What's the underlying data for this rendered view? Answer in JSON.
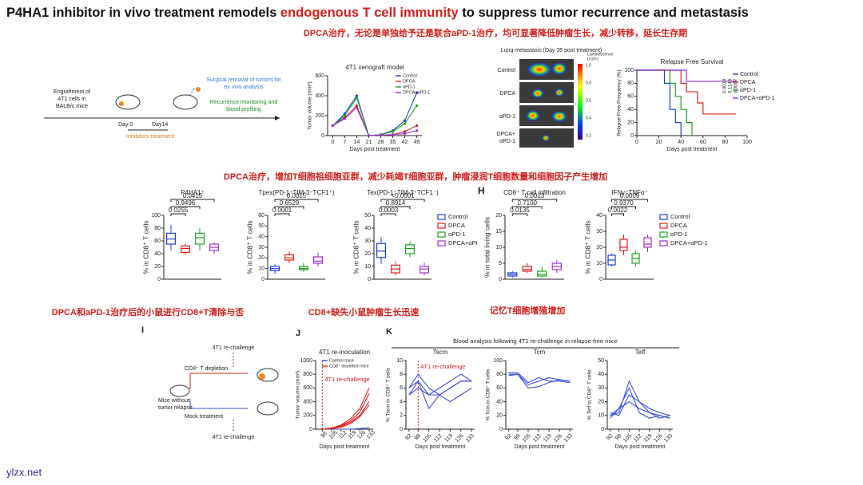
{
  "header": {
    "title_start": "P4HA1 inhibitor in vivo treatment remodels ",
    "title_highlight": "endogenous T cell immunity",
    "title_end": " to suppress tumor recurrence and metastasis",
    "subtitle": "DPCA治疗，无论是单独给予还是联合aPD-1治疗，均可显著降低肿瘤生长，减少转移，延长生存期"
  },
  "schematic_a": {
    "engraftment": [
      "Engraftment of",
      "4T1 cells in",
      "BALB/c mice"
    ],
    "surgery": [
      "Surgical removal of tumors for",
      "ex vivo analysis"
    ],
    "monitoring": [
      "Recurrence monitoring and",
      "blood profiling"
    ],
    "day0": "Day 0",
    "day14": "Day14",
    "treatment": "Inhibitors treatment"
  },
  "lung": {
    "title": "Lung metastasis (Day 35 post treatment)",
    "rows": [
      "Control",
      "DPCA",
      "αPD-1",
      "DPCA+",
      "αPD-1"
    ],
    "colorbar_label": [
      "Luminescence",
      "(×10⁶)"
    ],
    "colorbar_ticks": [
      "1.0",
      "0.8",
      "0.6",
      "0.4",
      "0.2"
    ]
  },
  "section_b": "DPCA治疗，增加T细胞祖细胞亚群，减少耗竭T细胞亚群，肿瘤浸润T细胞数量和细胞因子产生增加",
  "panel_h": "H",
  "captions": [
    "DPCA和aPD-1治疗后的小鼠进行CD8+T清除与否",
    "CD8+缺失小鼠肿瘤生长迅速",
    "记忆T细胞增殖增加"
  ],
  "schematic_i": {
    "label": "I",
    "rechallenge_top": "4T1 re-challenge",
    "depletion": "CD8⁺ T depletion",
    "mice": [
      "Mice without",
      "tumor relapse"
    ],
    "mock": "Mock treatment",
    "rechallenge_bottom": "4T1 re-challenge"
  },
  "panel_j": "J",
  "panel_k": {
    "label": "K",
    "heading": "Blood analysis following 4T1 re-challenge in relapse-free mice"
  },
  "footer": "ylzx.net",
  "chart_data": {
    "xenograft": {
      "type": "line",
      "title": "4T1 xenograft model",
      "y_label": "Tumor volume (mm³)",
      "x_label": "Days post treatment",
      "x": [
        0,
        7,
        14,
        21,
        28,
        35,
        42,
        49
      ],
      "xlim": [
        -3,
        52
      ],
      "xticks": [
        0,
        7,
        14,
        21,
        28,
        35,
        42,
        49
      ],
      "ylim": [
        0,
        600
      ],
      "yticks": [
        0,
        200,
        400,
        600
      ],
      "markers": true,
      "series": [
        {
          "name": "Control",
          "color": "#1f3fd6",
          "values": [
            100,
            220,
            400,
            0,
            10,
            50,
            150,
            430
          ]
        },
        {
          "name": "DPCA",
          "color": "#e0201b",
          "values": [
            100,
            180,
            300,
            0,
            5,
            10,
            40,
            100
          ]
        },
        {
          "name": "αPD-1",
          "color": "#1aa51a",
          "values": [
            100,
            200,
            380,
            0,
            10,
            40,
            120,
            300
          ]
        },
        {
          "name": "DPCA+αPD-1",
          "color": "#9b30d0",
          "values": [
            100,
            170,
            280,
            0,
            5,
            10,
            20,
            50
          ]
        }
      ]
    },
    "survival": {
      "type": "step",
      "title": "Relapse Free Survival",
      "y_label": "Relapse Free Frequency (%)",
      "x_label": "Days post treatment",
      "xlim": [
        0,
        100
      ],
      "xticks": [
        0,
        20,
        40,
        60,
        80,
        100
      ],
      "ylim": [
        0,
        100
      ],
      "yticks": [
        0,
        20,
        40,
        60,
        80,
        100
      ],
      "p_values": [
        "0.0019",
        "0.1148",
        "0.0007"
      ],
      "series": [
        {
          "name": "Control",
          "color": "#1f3fd6",
          "x": [
            0,
            25,
            30,
            35,
            40
          ],
          "values": [
            100,
            80,
            40,
            20,
            0
          ]
        },
        {
          "name": "DPCA",
          "color": "#e0201b",
          "x": [
            0,
            40,
            45,
            55,
            60,
            90
          ],
          "values": [
            100,
            80,
            67,
            50,
            33,
            33
          ]
        },
        {
          "name": "αPD-1",
          "color": "#1aa51a",
          "x": [
            0,
            30,
            35,
            40,
            45,
            50
          ],
          "values": [
            100,
            80,
            60,
            40,
            20,
            0
          ]
        },
        {
          "name": "DPCA+αPD-1",
          "color": "#9b30d0",
          "x": [
            0,
            45,
            90
          ],
          "values": [
            100,
            83,
            83
          ]
        }
      ]
    },
    "p4ha1": {
      "type": "box",
      "title": "P4HA1⁺",
      "y_label": "% in CD8⁺ T cells",
      "ylim": [
        0,
        100
      ],
      "yticks": [
        0,
        20,
        40,
        60,
        80,
        100
      ],
      "p_values": [
        "0.0415",
        "0.9496",
        "0.0255"
      ],
      "groups": [
        {
          "color": "#1f3fd6",
          "stats": [
            45,
            55,
            63,
            72,
            85
          ]
        },
        {
          "color": "#e0201b",
          "stats": [
            38,
            42,
            48,
            52,
            55
          ]
        },
        {
          "color": "#1aa51a",
          "stats": [
            45,
            55,
            65,
            72,
            80
          ]
        },
        {
          "color": "#9b30d0",
          "stats": [
            40,
            45,
            50,
            55,
            58
          ]
        }
      ]
    },
    "tpex": {
      "type": "box",
      "title": "Tpex(PD-1⁺TIM-3⁻TCF1⁺)",
      "y_label": "% in CD8⁺ T cells",
      "ylim": [
        0,
        60
      ],
      "yticks": [
        0,
        10,
        20,
        30,
        40,
        50,
        60
      ],
      "p_values": [
        "0.0015",
        "0.6529",
        "0.0001"
      ],
      "groups": [
        {
          "color": "#1f3fd6",
          "stats": [
            5,
            8,
            10,
            12,
            14
          ]
        },
        {
          "color": "#e0201b",
          "stats": [
            15,
            18,
            20,
            23,
            26
          ]
        },
        {
          "color": "#1aa51a",
          "stats": [
            7,
            9,
            10,
            12,
            15
          ]
        },
        {
          "color": "#9b30d0",
          "stats": [
            12,
            15,
            17,
            21,
            25
          ]
        }
      ]
    },
    "tex": {
      "type": "box",
      "title": "Tex(PD-1⁺TIM-3⁺TCF1⁻)",
      "y_label": "% in CD8⁺ T cells",
      "ylim": [
        0,
        50
      ],
      "yticks": [
        0,
        10,
        20,
        30,
        40,
        50
      ],
      "p_values": [
        "<0.0001",
        "0.8914",
        "0.0003"
      ],
      "legend": [
        "Control",
        "DPCA",
        "αPD-1",
        "DPCA+αPt"
      ],
      "groups": [
        {
          "color": "#1f3fd6",
          "stats": [
            12,
            17,
            22,
            28,
            33
          ]
        },
        {
          "color": "#e0201b",
          "stats": [
            3,
            5,
            8,
            11,
            14
          ]
        },
        {
          "color": "#1aa51a",
          "stats": [
            17,
            20,
            24,
            27,
            30
          ]
        },
        {
          "color": "#9b30d0",
          "stats": [
            3,
            5,
            8,
            10,
            13
          ]
        }
      ]
    },
    "cd8": {
      "type": "box",
      "title": "CD8⁺ T cell infiltration",
      "y_label": "% in total living cells",
      "ylim": [
        0,
        20
      ],
      "yticks": [
        0,
        5,
        10,
        15,
        20
      ],
      "p_values": [
        "0.0013",
        "0.7100",
        "0.0135"
      ],
      "groups": [
        {
          "color": "#1f3fd6",
          "stats": [
            0.5,
            1,
            1.5,
            2,
            2.5
          ]
        },
        {
          "color": "#e0201b",
          "stats": [
            2,
            2.5,
            3,
            4,
            5
          ]
        },
        {
          "color": "#1aa51a",
          "stats": [
            0.5,
            1,
            1.5,
            2.5,
            4
          ]
        },
        {
          "color": "#9b30d0",
          "stats": [
            2,
            3,
            4,
            5,
            6
          ]
        }
      ]
    },
    "ifng": {
      "type": "box",
      "title": "IFNγ⁺TNFα⁺",
      "y_label": "% in CD8⁺ T cells",
      "ylim": [
        0,
        40
      ],
      "yticks": [
        0,
        10,
        20,
        30,
        40
      ],
      "p_values": [
        "0.0009",
        "0.9370",
        "0.0022"
      ],
      "legend": [
        "Control",
        "DPCA",
        "αPD-1",
        "DPCA+αPD-1"
      ],
      "groups": [
        {
          "color": "#1f3fd6",
          "stats": [
            8,
            9,
            12,
            15,
            16
          ]
        },
        {
          "color": "#e0201b",
          "stats": [
            15,
            18,
            20,
            25,
            28
          ]
        },
        {
          "color": "#1aa51a",
          "stats": [
            8,
            10,
            13,
            16,
            18
          ]
        },
        {
          "color": "#9b30d0",
          "stats": [
            17,
            20,
            22,
            26,
            28
          ]
        }
      ]
    },
    "reinoc": {
      "type": "line",
      "title": "4T1 re-inoculation",
      "y_label": "Tumor volume (mm³)",
      "x_label": "Days post treatment",
      "annotation": "4T1 re-challenge",
      "x": [
        98,
        105,
        112,
        119,
        126,
        133
      ],
      "xlim": [
        93,
        136
      ],
      "xticks": [
        98,
        105,
        112,
        119,
        126,
        133
      ],
      "ylim": [
        0,
        1000
      ],
      "yticks": [
        0,
        200,
        400,
        600,
        800,
        1000
      ],
      "series": [
        {
          "name": "Control mice",
          "color": "#3b4fe0",
          "values": [
            0,
            0,
            0,
            0,
            10,
            20
          ]
        },
        {
          "name": "CD8⁺ depleted mice",
          "color": "#e0201b",
          "values": [
            0,
            20,
            50,
            120,
            250,
            520
          ]
        },
        {
          "color": "#e0201b",
          "values": [
            0,
            10,
            40,
            100,
            200,
            400
          ]
        },
        {
          "color": "#e0201b",
          "values": [
            0,
            15,
            60,
            150,
            300,
            600
          ]
        },
        {
          "color": "#e0201b",
          "values": [
            0,
            5,
            30,
            80,
            180,
            350
          ]
        }
      ]
    },
    "tscm": {
      "type": "line",
      "title": "Tscm",
      "y_label": "% Tscm in CD8⁺ T cells",
      "x_label": "Days post treatment",
      "annotation": "4T1 re-challenge",
      "x": [
        92,
        98,
        105,
        112,
        119,
        126,
        133
      ],
      "xlim": [
        90,
        135
      ],
      "xticks": [
        92,
        98,
        105,
        112,
        119,
        126,
        133
      ],
      "ylim": [
        0,
        10
      ],
      "yticks": [
        0,
        2,
        4,
        6,
        8,
        10
      ],
      "series": [
        {
          "color": "#3b4fe0",
          "values": [
            5,
            7,
            3,
            5,
            6,
            7,
            7
          ]
        },
        {
          "color": "#3b4fe0",
          "values": [
            6,
            7,
            5,
            5,
            4,
            5,
            6
          ]
        },
        {
          "color": "#3b4fe0",
          "values": [
            6,
            8,
            6,
            5,
            6,
            7,
            7
          ]
        },
        {
          "color": "#3b4fe0",
          "values": [
            5,
            6,
            5,
            6,
            7,
            8,
            7
          ]
        }
      ]
    },
    "tcm": {
      "type": "line",
      "title": "Tcm",
      "y_label": "% Tcm in CD8⁺ T cells",
      "x_label": "Days post treatment",
      "x": [
        92,
        98,
        105,
        112,
        119,
        126,
        133
      ],
      "xlim": [
        90,
        135
      ],
      "xticks": [
        92,
        98,
        105,
        112,
        119,
        126,
        133
      ],
      "ylim": [
        0,
        100
      ],
      "yticks": [
        0,
        20,
        40,
        60,
        80,
        100
      ],
      "series": [
        {
          "color": "#3b4fe0",
          "values": [
            80,
            80,
            65,
            70,
            75,
            72,
            70
          ]
        },
        {
          "color": "#3b4fe0",
          "values": [
            78,
            80,
            60,
            62,
            68,
            72,
            70
          ]
        },
        {
          "color": "#3b4fe0",
          "values": [
            82,
            82,
            68,
            75,
            70,
            70,
            68
          ]
        }
      ]
    },
    "teff": {
      "type": "line",
      "title": "Teff",
      "y_label": "% Teff in CD8⁺ T cells",
      "x_label": "Days post treatment",
      "x": [
        92,
        98,
        105,
        112,
        119,
        126,
        133
      ],
      "xlim": [
        90,
        135
      ],
      "xticks": [
        92,
        98,
        105,
        112,
        119,
        126,
        133
      ],
      "ylim": [
        0,
        50
      ],
      "yticks": [
        0,
        10,
        20,
        30,
        40,
        50
      ],
      "series": [
        {
          "color": "#3b4fe0",
          "values": [
            10,
            12,
            35,
            20,
            12,
            10,
            8
          ]
        },
        {
          "color": "#3b4fe0",
          "values": [
            8,
            15,
            30,
            12,
            8,
            10,
            8
          ]
        },
        {
          "color": "#3b4fe0",
          "values": [
            12,
            10,
            25,
            20,
            15,
            12,
            10
          ]
        },
        {
          "color": "#3b4fe0",
          "values": [
            10,
            15,
            20,
            15,
            12,
            8,
            10
          ]
        }
      ]
    }
  }
}
